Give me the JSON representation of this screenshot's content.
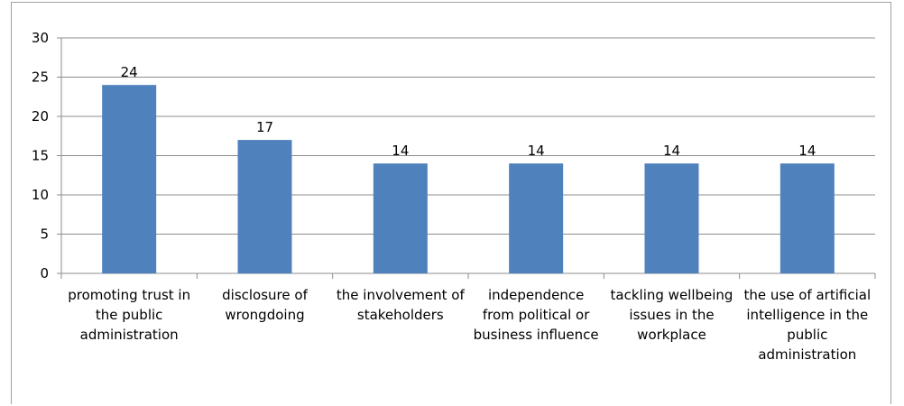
{
  "chart_data": {
    "type": "bar",
    "categories": [
      "promoting trust in the public administration",
      "disclosure of wrongdoing",
      "the involvement of stakeholders",
      "independence from political or business influence",
      "tackling wellbeing issues in the workplace",
      "the use of artificial intelligence in the public administration"
    ],
    "values": [
      24,
      17,
      14,
      14,
      14,
      14
    ],
    "color": "#4f81bd",
    "ylim": [
      0,
      30
    ],
    "yticks": [
      0,
      5,
      10,
      15,
      20,
      25,
      30
    ],
    "grid": true
  }
}
